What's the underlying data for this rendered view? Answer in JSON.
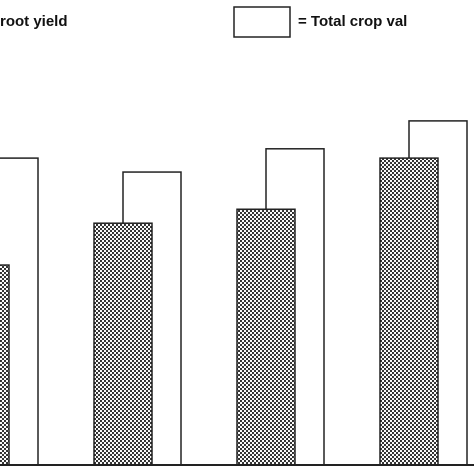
{
  "chart_data": {
    "type": "bar",
    "categories": [
      null,
      null,
      null,
      null
    ],
    "series": [
      {
        "name": "root yield",
        "color": "dotted",
        "values": [
          43,
          52,
          55,
          66
        ]
      },
      {
        "name": "= Total crop val",
        "color": "#ffffff",
        "values": [
          66,
          63,
          68,
          74
        ]
      }
    ],
    "ylim": [
      0,
      100
    ]
  }
}
